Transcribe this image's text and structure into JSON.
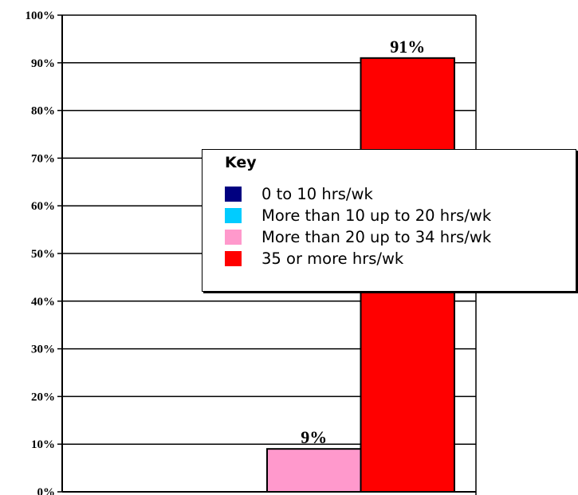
{
  "chart_data": {
    "type": "bar",
    "title": "",
    "xlabel": "",
    "ylabel": "",
    "ylim": [
      0,
      100
    ],
    "yticks": [
      "0%",
      "10%",
      "20%",
      "30%",
      "40%",
      "50%",
      "60%",
      "70%",
      "80%",
      "90%",
      "100%"
    ],
    "grid": true,
    "series": [
      {
        "name": "0 to 10 hrs/wk",
        "color": "#000080",
        "value": 0,
        "label": ""
      },
      {
        "name": "More than 10 up to 20 hrs/wk",
        "color": "#00ccff",
        "value": 0,
        "label": ""
      },
      {
        "name": "More than 20 up to 34 hrs/wk",
        "color": "#ff99cc",
        "value": 9,
        "label": "9%"
      },
      {
        "name": "35 or more hrs/wk",
        "color": "#ff0000",
        "value": 91,
        "label": "91%"
      }
    ],
    "legend": {
      "title": "Key",
      "placement": "right"
    }
  }
}
